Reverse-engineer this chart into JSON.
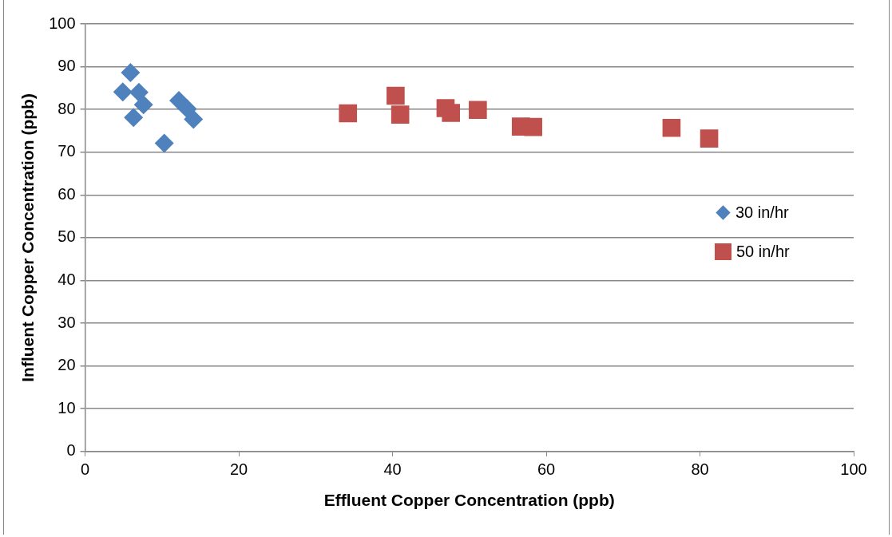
{
  "chart_data": {
    "type": "scatter",
    "xlabel": "Effluent Copper Concentration (ppb)",
    "ylabel": "Influent Copper Concentration (ppb)",
    "xlim": [
      0,
      100
    ],
    "xticks": [
      0,
      20,
      40,
      60,
      80,
      100
    ],
    "ylim": [
      0,
      100
    ],
    "yticks": [
      0,
      10,
      20,
      30,
      40,
      50,
      60,
      70,
      80,
      90,
      100
    ],
    "grid": "y",
    "legend": "right",
    "series": [
      {
        "name": "30 in/hr",
        "color": "#4f81bd",
        "marker": "diamond",
        "x": [
          5.9,
          4.9,
          7.0,
          7.6,
          6.3,
          12.2,
          13.3,
          14.1,
          10.3
        ],
        "values": [
          88.6,
          84.1,
          84.0,
          81.1,
          78.1,
          82.1,
          80.1,
          77.7,
          72.1
        ]
      },
      {
        "name": "50 in/hr",
        "color": "#c0504d",
        "marker": "square",
        "x": [
          34.2,
          40.4,
          41.0,
          47.6,
          46.9,
          51.1,
          56.7,
          58.3,
          76.3,
          81.2
        ],
        "values": [
          79.1,
          83.2,
          78.8,
          79.2,
          80.3,
          79.9,
          76.0,
          75.9,
          75.7,
          73.2
        ]
      }
    ]
  }
}
